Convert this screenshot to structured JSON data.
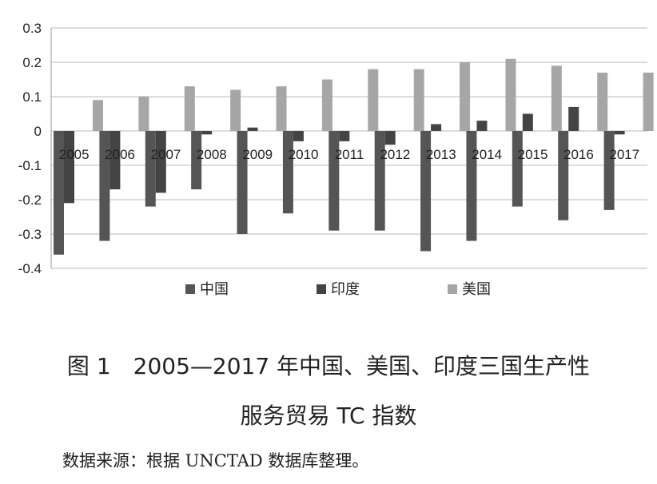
{
  "chart_data": {
    "type": "bar",
    "categories": [
      "2005",
      "2006",
      "2007",
      "2008",
      "2009",
      "2010",
      "2011",
      "2012",
      "2013",
      "2014",
      "2015",
      "2016",
      "2017"
    ],
    "series": [
      {
        "name": "中国",
        "color": "#555555",
        "values": [
          -0.36,
          -0.32,
          -0.22,
          -0.17,
          -0.3,
          -0.24,
          -0.29,
          -0.29,
          -0.35,
          -0.32,
          -0.22,
          -0.26,
          -0.23
        ]
      },
      {
        "name": "印度",
        "color": "#444444",
        "values": [
          -0.21,
          -0.17,
          -0.18,
          -0.01,
          0.01,
          -0.03,
          -0.03,
          -0.04,
          0.02,
          0.03,
          0.05,
          0.07,
          -0.01
        ]
      },
      {
        "name": "美国",
        "color": "#a6a6a6",
        "values": [
          0.09,
          0.1,
          0.13,
          0.12,
          0.13,
          0.15,
          0.18,
          0.18,
          0.2,
          0.21,
          0.19,
          0.17,
          0.17
        ]
      }
    ],
    "ylim": [
      -0.4,
      0.3
    ],
    "yticks": [
      "0.3",
      "0.2",
      "0.1",
      "0",
      "-0.1",
      "-0.2",
      "-0.3",
      "-0.4"
    ],
    "grid": true,
    "legend_position": "bottom"
  },
  "caption": {
    "line1": "图 1　2005—2017 年中国、美国、印度三国生产性",
    "line2": "服务贸易 TC 指数"
  },
  "source_note": "数据来源：根据 UNCTAD 数据库整理。"
}
